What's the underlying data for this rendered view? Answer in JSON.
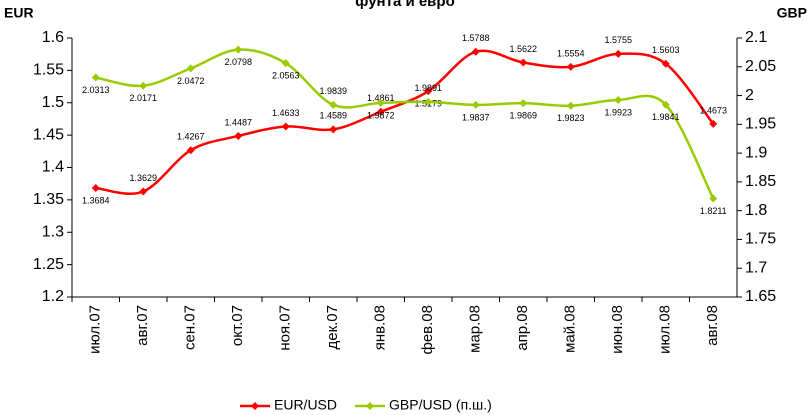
{
  "chart_data": {
    "type": "line",
    "title": "фунта и евро",
    "y_label": "EUR",
    "y2_label": "GBP",
    "categories": [
      "июл.07",
      "авг.07",
      "сен.07",
      "окт.07",
      "ноя.07",
      "дек.07",
      "янв.08",
      "фев.08",
      "мар.08",
      "апр.08",
      "май.08",
      "июн.08",
      "июл.08",
      "авг.08"
    ],
    "series": [
      {
        "name": "EUR/USD",
        "color": "#ff0000",
        "values": [
          1.3684,
          1.3629,
          1.4267,
          1.4487,
          1.4633,
          1.4589,
          1.4861,
          1.5179,
          1.5788,
          1.5622,
          1.5554,
          1.5755,
          1.5603,
          1.4673
        ]
      },
      {
        "name": "GBP/USD (п.ш.)",
        "color": "#99cc00",
        "axis": "y2",
        "values": [
          2.0313,
          2.0171,
          2.0472,
          2.0798,
          2.0563,
          1.9839,
          1.9872,
          1.9891,
          1.9837,
          1.9869,
          1.9823,
          1.9923,
          1.9841,
          1.8211
        ]
      }
    ],
    "ylim": [
      1.2,
      1.6
    ],
    "yticks": [
      1.2,
      1.25,
      1.3,
      1.35,
      1.4,
      1.45,
      1.5,
      1.55,
      1.6
    ],
    "y2lim": [
      1.65,
      2.1
    ],
    "y2ticks": [
      1.65,
      1.7,
      1.75,
      1.8,
      1.85,
      1.9,
      1.95,
      2,
      2.05,
      2.1
    ],
    "legend": "bottom"
  }
}
